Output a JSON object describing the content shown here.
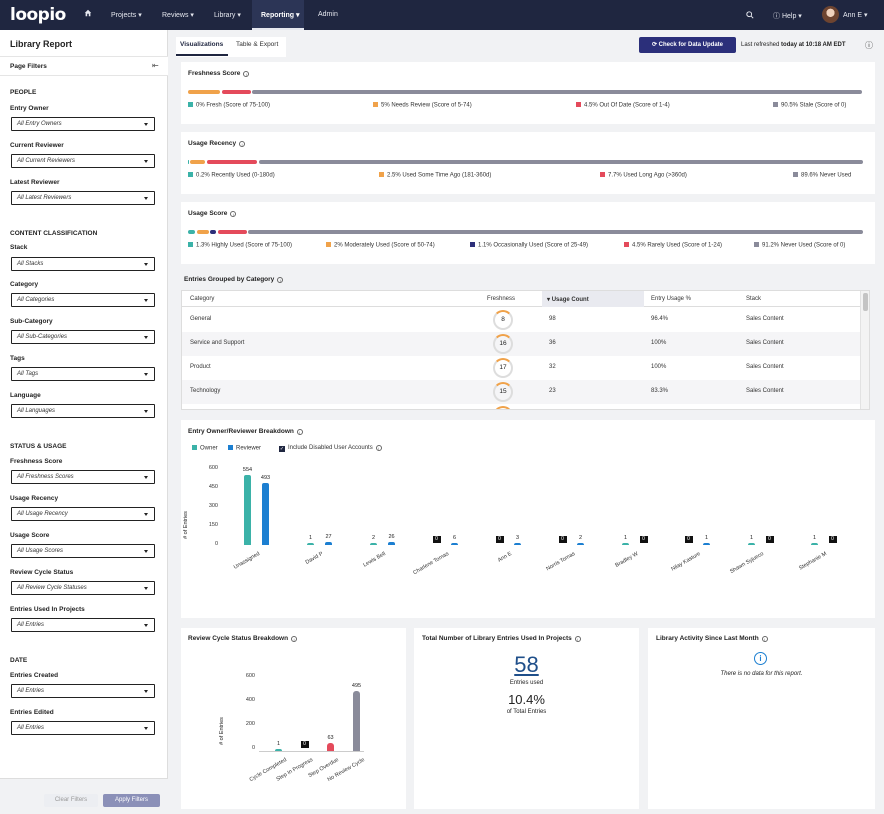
{
  "nav": {
    "logo": "loopio",
    "items": [
      "Projects",
      "Reviews",
      "Library",
      "Reporting",
      "Admin"
    ],
    "help": "Help",
    "user": "Ann E"
  },
  "sidebar": {
    "title": "Library Report",
    "filters_header": "Page Filters",
    "sections": {
      "people": "PEOPLE",
      "content": "CONTENT CLASSIFICATION",
      "status": "STATUS & USAGE",
      "date": "DATE"
    },
    "filters": [
      {
        "label": "Entry Owner",
        "value": "All Entry Owners"
      },
      {
        "label": "Current Reviewer",
        "value": "All Current Reviewers"
      },
      {
        "label": "Latest Reviewer",
        "value": "All Latest Reviewers"
      },
      {
        "label": "Stack",
        "value": "All Stacks"
      },
      {
        "label": "Category",
        "value": "All Categories"
      },
      {
        "label": "Sub-Category",
        "value": "All Sub-Categories"
      },
      {
        "label": "Tags",
        "value": "All Tags"
      },
      {
        "label": "Language",
        "value": "All Languages"
      },
      {
        "label": "Freshness Score",
        "value": "All Freshness Scores"
      },
      {
        "label": "Usage Recency",
        "value": "All Usage Recency"
      },
      {
        "label": "Usage Score",
        "value": "All Usage Scores"
      },
      {
        "label": "Review Cycle Status",
        "value": "All Review Cycle Statuses"
      },
      {
        "label": "Entries Used In Projects",
        "value": "All Entries"
      },
      {
        "label": "Entries Created",
        "value": "All Entries"
      },
      {
        "label": "Entries Edited",
        "value": "All Entries"
      }
    ],
    "clear": "Clear Filters",
    "apply": "Apply Filters"
  },
  "tabs": {
    "viz": "Visualizations",
    "table": "Table & Export"
  },
  "header": {
    "check_button": "Check for Data Update",
    "refreshed_prefix": "Last refreshed",
    "refreshed_time": "today at 10:18 AM EDT"
  },
  "freshness": {
    "title": "Freshness Score",
    "legend": [
      "0% Fresh (Score of 75-100)",
      "5% Needs Review (Score of 5-74)",
      "4.5% Out Of Date (Score of 1-4)",
      "90.5% Stale (Score of 0)"
    ],
    "shares": [
      0,
      5,
      4.5,
      90.5
    ],
    "colors": [
      "#3bb2a8",
      "#f0a24a",
      "#e44a5b",
      "#8a8b9a"
    ]
  },
  "recency": {
    "title": "Usage Recency",
    "legend": [
      "0.2% Recently Used (0-180d)",
      "2.5% Used Some Time Ago (181-360d)",
      "7.7% Used Long Ago (>360d)",
      "89.6% Never Used"
    ],
    "shares": [
      0.2,
      2.5,
      7.7,
      89.6
    ],
    "colors": [
      "#3bb2a8",
      "#f0a24a",
      "#e44a5b",
      "#8a8b9a"
    ]
  },
  "usage_score": {
    "title": "Usage Score",
    "legend": [
      "1.3% Highly Used (Score of 75-100)",
      "2% Moderately Used (Score of 50-74)",
      "1.1% Occasionally Used (Score of 25-49)",
      "4.5% Rarely Used (Score of 1-24)",
      "91.2% Never Used (Score of 0)"
    ],
    "shares": [
      1.3,
      2,
      1.1,
      4.5,
      91.2
    ],
    "colors": [
      "#3bb2a8",
      "#f0a24a",
      "#2d2f7a",
      "#e44a5b",
      "#8a8b9a"
    ]
  },
  "category_table": {
    "title": "Entries Grouped by Category",
    "headers": [
      "Category",
      "Freshness",
      "Usage Count",
      "Entry Usage %",
      "Stack"
    ],
    "rows": [
      [
        "General",
        "8",
        "98",
        "96.4%",
        "Sales Content"
      ],
      [
        "Service and Support",
        "16",
        "36",
        "100%",
        "Sales Content"
      ],
      [
        "Product",
        "17",
        "32",
        "100%",
        "Sales Content"
      ],
      [
        "Technology",
        "15",
        "23",
        "83.3%",
        "Sales Content"
      ]
    ]
  },
  "owner_chart": {
    "title": "Entry Owner/Reviewer Breakdown",
    "legend_owner": "Owner",
    "legend_reviewer": "Reviewer",
    "include_disabled": "Include Disabled User Accounts",
    "ylabel": "# of Entries",
    "ticks": [
      "600",
      "450",
      "300",
      "150",
      "0"
    ]
  },
  "chart_data": [
    {
      "type": "bar",
      "title": "Entry Owner/Reviewer Breakdown",
      "ylabel": "# of Entries",
      "ylim": [
        0,
        600
      ],
      "categories": [
        "Unassigned",
        "David P",
        "Lewis Bell",
        "Charlene Tomas",
        "Ann E",
        "Norris Tomas",
        "Bradley W",
        "Nilay Kasture",
        "Shawn Syjueco",
        "Stephanie M"
      ],
      "series": [
        {
          "name": "Owner",
          "values": [
            554,
            1,
            2,
            0,
            0,
            0,
            1,
            0,
            1,
            1
          ]
        },
        {
          "name": "Reviewer",
          "values": [
            493,
            27,
            26,
            6,
            3,
            2,
            0,
            1,
            0,
            0
          ]
        }
      ]
    },
    {
      "type": "bar",
      "title": "Review Cycle Status Breakdown",
      "ylabel": "# of Entries",
      "ylim": [
        0,
        600
      ],
      "categories": [
        "Cycle Completed",
        "Step In Progress",
        "Step Overdue",
        "No Review Cycle"
      ],
      "values": [
        1,
        0,
        63,
        495
      ]
    }
  ],
  "review_chart": {
    "title": "Review Cycle Status Breakdown",
    "ylabel": "# of Entries",
    "ticks": [
      "600",
      "400",
      "200",
      "0"
    ]
  },
  "projects_card": {
    "title": "Total Number of Library Entries Used In Projects",
    "count": "58",
    "count_label": "Entries used",
    "pct": "10.4%",
    "pct_label": "of Total Entries"
  },
  "activity_card": {
    "title": "Library Activity Since Last Month",
    "empty": "There is no data for this report."
  }
}
